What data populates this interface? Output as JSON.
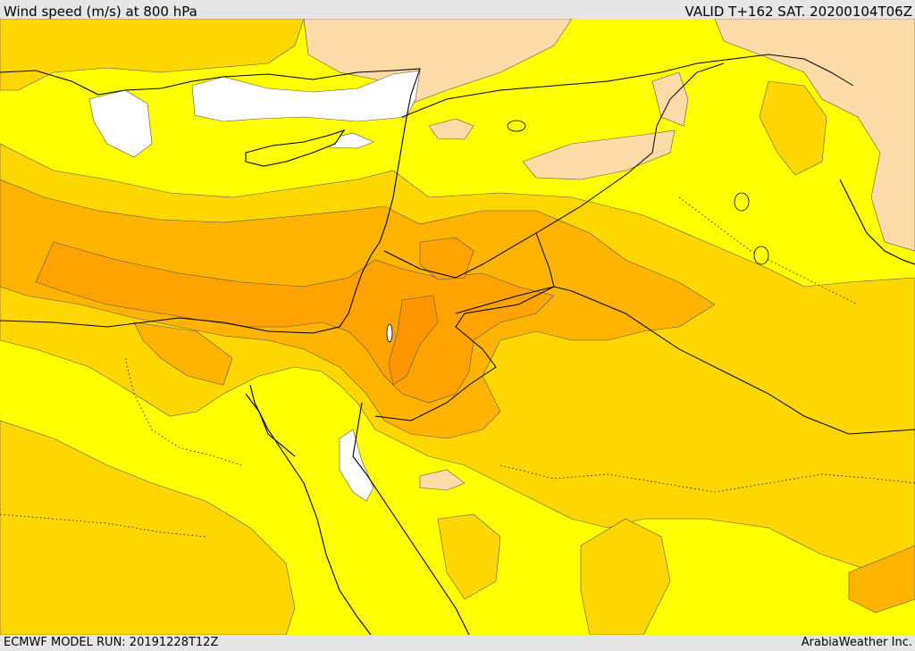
{
  "header": {
    "title": "Wind speed (m/s) at 800 hPa",
    "valid": "VALID T+162 SAT. 20200104T06Z"
  },
  "footer": {
    "model_run": "ECMWF MODEL RUN: 20191228T12Z",
    "credit": "ArabiaWeather Inc."
  },
  "map": {
    "colors": {
      "calm": "#ffffff",
      "light": "#fddba6",
      "moderate": "#ffff00",
      "fresh": "#ffd700",
      "strong": "#ffb400",
      "stronger": "#ffa300",
      "strongest": "#ff9600",
      "coast": "#000000"
    }
  }
}
